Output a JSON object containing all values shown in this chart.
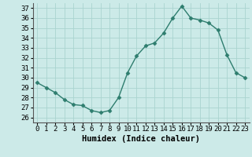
{
  "x": [
    0,
    1,
    2,
    3,
    4,
    5,
    6,
    7,
    8,
    9,
    10,
    11,
    12,
    13,
    14,
    15,
    16,
    17,
    18,
    19,
    20,
    21,
    22,
    23
  ],
  "y": [
    29.5,
    29.0,
    28.5,
    27.8,
    27.3,
    27.2,
    26.7,
    26.5,
    26.7,
    28.0,
    30.5,
    32.2,
    33.2,
    33.5,
    34.5,
    36.0,
    37.2,
    36.0,
    35.8,
    35.5,
    34.8,
    32.3,
    30.5,
    30.0
  ],
  "line_color": "#2e7d6e",
  "marker": "D",
  "marker_size": 2.5,
  "bg_color": "#cceae8",
  "grid_color": "#aad4d0",
  "axis_label": "Humidex (Indice chaleur)",
  "ylim": [
    25.5,
    37.5
  ],
  "xlim": [
    -0.5,
    23.5
  ],
  "yticks": [
    26,
    27,
    28,
    29,
    30,
    31,
    32,
    33,
    34,
    35,
    36,
    37
  ],
  "xticks": [
    0,
    1,
    2,
    3,
    4,
    5,
    6,
    7,
    8,
    9,
    10,
    11,
    12,
    13,
    14,
    15,
    16,
    17,
    18,
    19,
    20,
    21,
    22,
    23
  ],
  "xlabel_fontsize": 7.5,
  "tick_fontsize": 6.5,
  "line_width": 1.0
}
